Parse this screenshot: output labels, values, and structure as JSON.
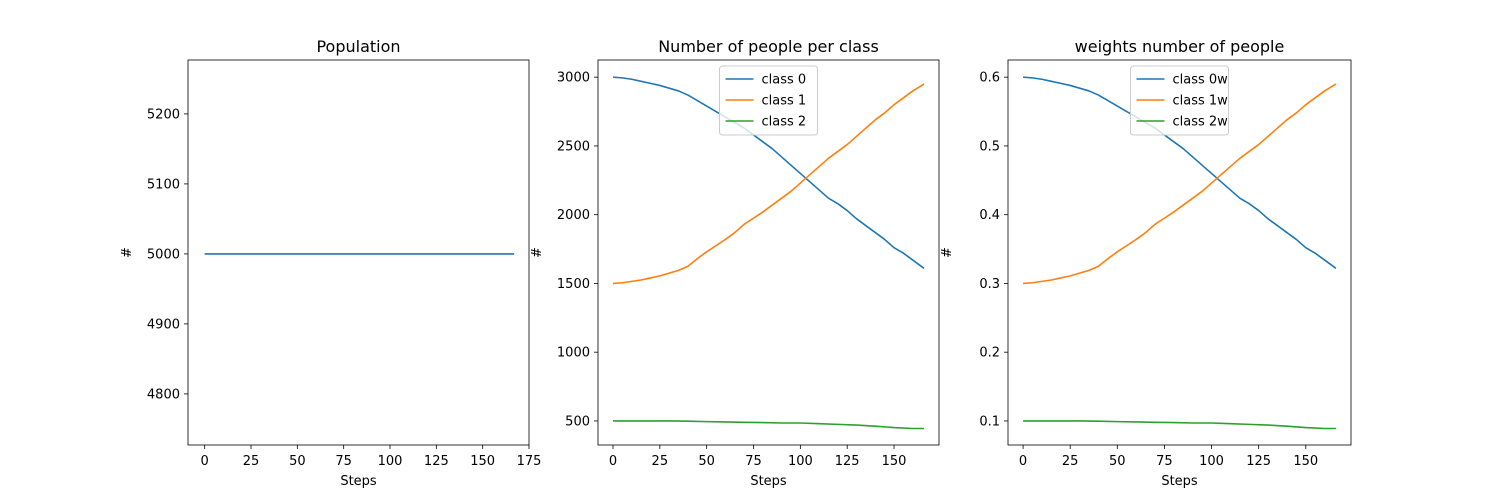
{
  "chart_data": [
    {
      "type": "line",
      "title": "Population",
      "xlabel": "Steps",
      "ylabel": "#",
      "xlim": [
        -9,
        175
      ],
      "ylim": [
        4727,
        5277
      ],
      "xticks": [
        0,
        25,
        50,
        75,
        100,
        125,
        150,
        175
      ],
      "yticks": [
        4800,
        4900,
        5000,
        5100,
        5200
      ],
      "ytick_decimals": 0,
      "legend": null,
      "series": [
        {
          "color": "#1f77b4",
          "x": [
            0,
            167
          ],
          "y": [
            5000,
            5000
          ]
        }
      ]
    },
    {
      "type": "line",
      "title": "Number of people per class",
      "xlabel": "Steps",
      "ylabel": "#",
      "xlim": [
        -8,
        174
      ],
      "ylim": [
        325,
        3125
      ],
      "xticks": [
        0,
        25,
        50,
        75,
        100,
        125,
        150
      ],
      "yticks": [
        500,
        1000,
        1500,
        2000,
        2500,
        3000
      ],
      "ytick_decimals": 0,
      "legend": "upper center",
      "series": [
        {
          "name": "class 0",
          "color": "#1f77b4",
          "x": [
            0,
            5,
            10,
            15,
            20,
            25,
            30,
            35,
            40,
            45,
            50,
            55,
            60,
            65,
            70,
            75,
            80,
            85,
            90,
            95,
            100,
            105,
            110,
            115,
            120,
            125,
            130,
            135,
            140,
            145,
            150,
            155,
            160,
            166
          ],
          "y": [
            3000,
            2995,
            2985,
            2970,
            2955,
            2940,
            2920,
            2900,
            2870,
            2830,
            2790,
            2750,
            2710,
            2670,
            2630,
            2580,
            2530,
            2480,
            2420,
            2360,
            2300,
            2240,
            2180,
            2120,
            2080,
            2030,
            1970,
            1920,
            1870,
            1820,
            1760,
            1720,
            1670,
            1610
          ]
        },
        {
          "name": "class 1",
          "color": "#ff7f0e",
          "x": [
            0,
            5,
            10,
            15,
            20,
            25,
            30,
            35,
            40,
            45,
            50,
            55,
            60,
            65,
            70,
            75,
            80,
            85,
            90,
            95,
            100,
            105,
            110,
            115,
            120,
            125,
            130,
            135,
            140,
            145,
            150,
            155,
            160,
            166
          ],
          "y": [
            1500,
            1505,
            1515,
            1525,
            1540,
            1555,
            1575,
            1595,
            1625,
            1680,
            1730,
            1775,
            1820,
            1870,
            1930,
            1975,
            2020,
            2070,
            2120,
            2170,
            2230,
            2290,
            2350,
            2410,
            2460,
            2510,
            2570,
            2630,
            2690,
            2740,
            2800,
            2850,
            2900,
            2950
          ]
        },
        {
          "name": "class 2",
          "color": "#2ca02c",
          "x": [
            0,
            10,
            20,
            30,
            40,
            50,
            60,
            70,
            80,
            90,
            100,
            110,
            120,
            130,
            140,
            150,
            160,
            166
          ],
          "y": [
            500,
            500,
            500,
            500,
            498,
            495,
            493,
            490,
            488,
            485,
            485,
            480,
            475,
            470,
            462,
            452,
            445,
            445
          ]
        }
      ]
    },
    {
      "type": "line",
      "title": "weights number of people",
      "xlabel": "Steps",
      "ylabel": "#",
      "xlim": [
        -8,
        174
      ],
      "ylim": [
        0.065,
        0.625
      ],
      "xticks": [
        0,
        25,
        50,
        75,
        100,
        125,
        150
      ],
      "yticks": [
        0.1,
        0.2,
        0.3,
        0.4,
        0.5,
        0.6
      ],
      "ytick_decimals": 1,
      "legend": "upper center",
      "series": [
        {
          "name": "class 0w",
          "color": "#1f77b4",
          "x": [
            0,
            5,
            10,
            15,
            20,
            25,
            30,
            35,
            40,
            45,
            50,
            55,
            60,
            65,
            70,
            75,
            80,
            85,
            90,
            95,
            100,
            105,
            110,
            115,
            120,
            125,
            130,
            135,
            140,
            145,
            150,
            155,
            160,
            166
          ],
          "y": [
            0.6,
            0.599,
            0.597,
            0.594,
            0.591,
            0.588,
            0.584,
            0.58,
            0.574,
            0.566,
            0.558,
            0.55,
            0.542,
            0.534,
            0.526,
            0.516,
            0.506,
            0.496,
            0.484,
            0.472,
            0.46,
            0.448,
            0.436,
            0.424,
            0.416,
            0.406,
            0.394,
            0.384,
            0.374,
            0.364,
            0.352,
            0.344,
            0.334,
            0.322
          ]
        },
        {
          "name": "class 1w",
          "color": "#ff7f0e",
          "x": [
            0,
            5,
            10,
            15,
            20,
            25,
            30,
            35,
            40,
            45,
            50,
            55,
            60,
            65,
            70,
            75,
            80,
            85,
            90,
            95,
            100,
            105,
            110,
            115,
            120,
            125,
            130,
            135,
            140,
            145,
            150,
            155,
            160,
            166
          ],
          "y": [
            0.3,
            0.301,
            0.303,
            0.305,
            0.308,
            0.311,
            0.315,
            0.319,
            0.325,
            0.336,
            0.346,
            0.355,
            0.364,
            0.374,
            0.386,
            0.395,
            0.404,
            0.414,
            0.424,
            0.434,
            0.446,
            0.458,
            0.47,
            0.482,
            0.492,
            0.502,
            0.514,
            0.526,
            0.538,
            0.548,
            0.56,
            0.57,
            0.58,
            0.59
          ]
        },
        {
          "name": "class 2w",
          "color": "#2ca02c",
          "x": [
            0,
            10,
            20,
            30,
            40,
            50,
            60,
            70,
            80,
            90,
            100,
            110,
            120,
            130,
            140,
            150,
            160,
            166
          ],
          "y": [
            0.1,
            0.1,
            0.1,
            0.1,
            0.0996,
            0.099,
            0.0986,
            0.098,
            0.0976,
            0.097,
            0.097,
            0.096,
            0.095,
            0.094,
            0.0924,
            0.0904,
            0.089,
            0.089
          ]
        }
      ]
    }
  ]
}
